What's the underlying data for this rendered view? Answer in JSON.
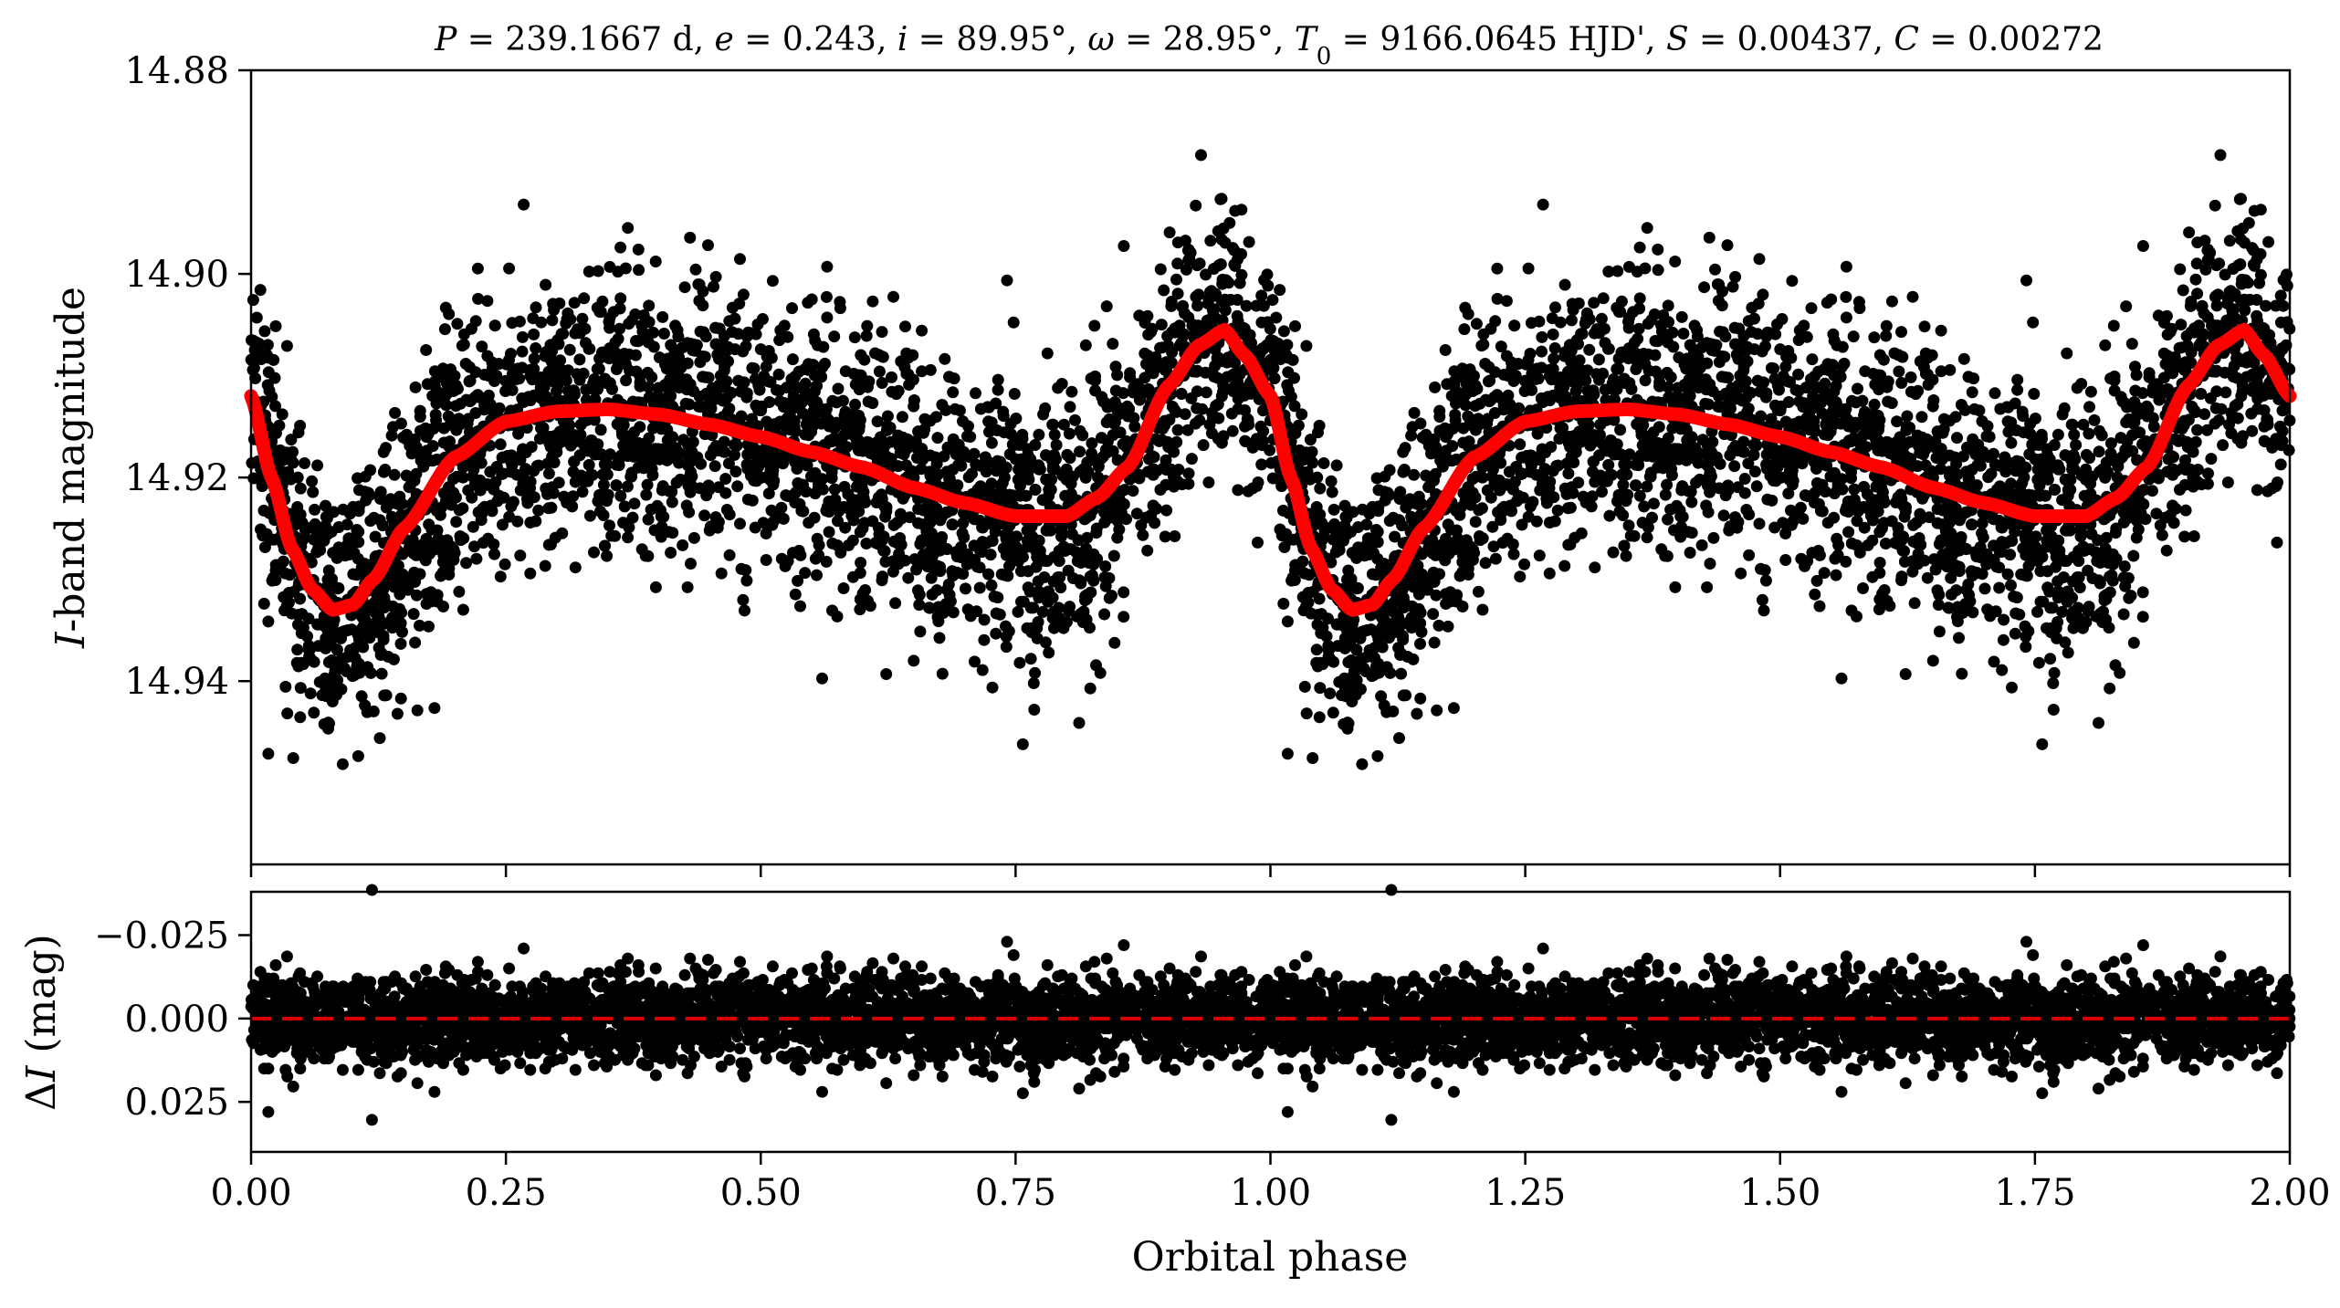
{
  "chart_data": [
    {
      "id": "main",
      "type": "scatter",
      "title": "P = 239.1667 d, e = 0.243, i = 89.95°, ω = 28.95°, T0 = 9166.0645 HJD', S = 0.00437, C = 0.00272",
      "title_parts": [
        {
          "text": "P",
          "style": "italic"
        },
        {
          "text": " = 239.1667 d, "
        },
        {
          "text": "e",
          "style": "italic"
        },
        {
          "text": " = 0.243, "
        },
        {
          "text": "i",
          "style": "italic"
        },
        {
          "text": " = 89.95°, "
        },
        {
          "text": "ω",
          "style": "italic"
        },
        {
          "text": " = 28.95°, "
        },
        {
          "text": "T",
          "style": "italic"
        },
        {
          "text": "0",
          "sub": true
        },
        {
          "text": " = 9166.0645 HJD', "
        },
        {
          "text": "S",
          "style": "italic"
        },
        {
          "text": " = 0.00437, "
        },
        {
          "text": "C",
          "style": "italic"
        },
        {
          "text": " = 0.00272"
        }
      ],
      "ylabel": "I-band magnitude",
      "ylabel_parts": [
        {
          "text": "I",
          "style": "italic"
        },
        {
          "text": "-band magnitude"
        }
      ],
      "xlim": [
        0.0,
        2.0
      ],
      "ylim": [
        14.88,
        14.958
      ],
      "y_inverted": true,
      "yticks": [
        14.88,
        14.9,
        14.92,
        14.94
      ],
      "ytick_labels": [
        "14.88",
        "14.90",
        "14.92",
        "14.94"
      ],
      "grid": false,
      "point_color": "#000000",
      "model_color": "#ff0000",
      "point_count_per_cycle": 3000,
      "point_scatter_sigma": 0.0065,
      "model_curve": {
        "x": [
          0.0,
          0.02,
          0.04,
          0.06,
          0.08,
          0.1,
          0.12,
          0.15,
          0.2,
          0.25,
          0.3,
          0.35,
          0.4,
          0.45,
          0.5,
          0.55,
          0.6,
          0.65,
          0.7,
          0.75,
          0.8,
          0.83,
          0.86,
          0.9,
          0.93,
          0.955,
          0.975,
          1.0
        ],
        "y": [
          14.912,
          14.92,
          14.927,
          14.931,
          14.933,
          14.9325,
          14.93,
          14.925,
          14.918,
          14.9145,
          14.9135,
          14.9133,
          14.9138,
          14.9148,
          14.916,
          14.9175,
          14.919,
          14.921,
          14.9225,
          14.9238,
          14.9238,
          14.922,
          14.919,
          14.911,
          14.907,
          14.9055,
          14.908,
          14.912
        ]
      }
    },
    {
      "id": "residuals",
      "type": "scatter",
      "ylabel": "ΔI (mag)",
      "ylabel_parts": [
        {
          "text": "Δ"
        },
        {
          "text": "I",
          "style": "italic"
        },
        {
          "text": " (mag)"
        }
      ],
      "xlabel": "Orbital phase",
      "xlim": [
        0.0,
        2.0
      ],
      "ylim": [
        -0.038,
        0.04
      ],
      "y_inverted": true,
      "yticks": [
        -0.025,
        0.0,
        0.025
      ],
      "ytick_labels": [
        "−0.025",
        "0.000",
        "0.025"
      ],
      "xticks": [
        0.0,
        0.25,
        0.5,
        0.75,
        1.0,
        1.25,
        1.5,
        1.75,
        2.0
      ],
      "xtick_labels": [
        "0.00",
        "0.25",
        "0.50",
        "0.75",
        "1.00",
        "1.25",
        "1.50",
        "1.75",
        "2.00"
      ],
      "zero_line": {
        "y": 0.0,
        "color": "#dd0000",
        "style": "dashed"
      },
      "point_color": "#000000",
      "point_scatter_sigma": 0.0065
    }
  ]
}
